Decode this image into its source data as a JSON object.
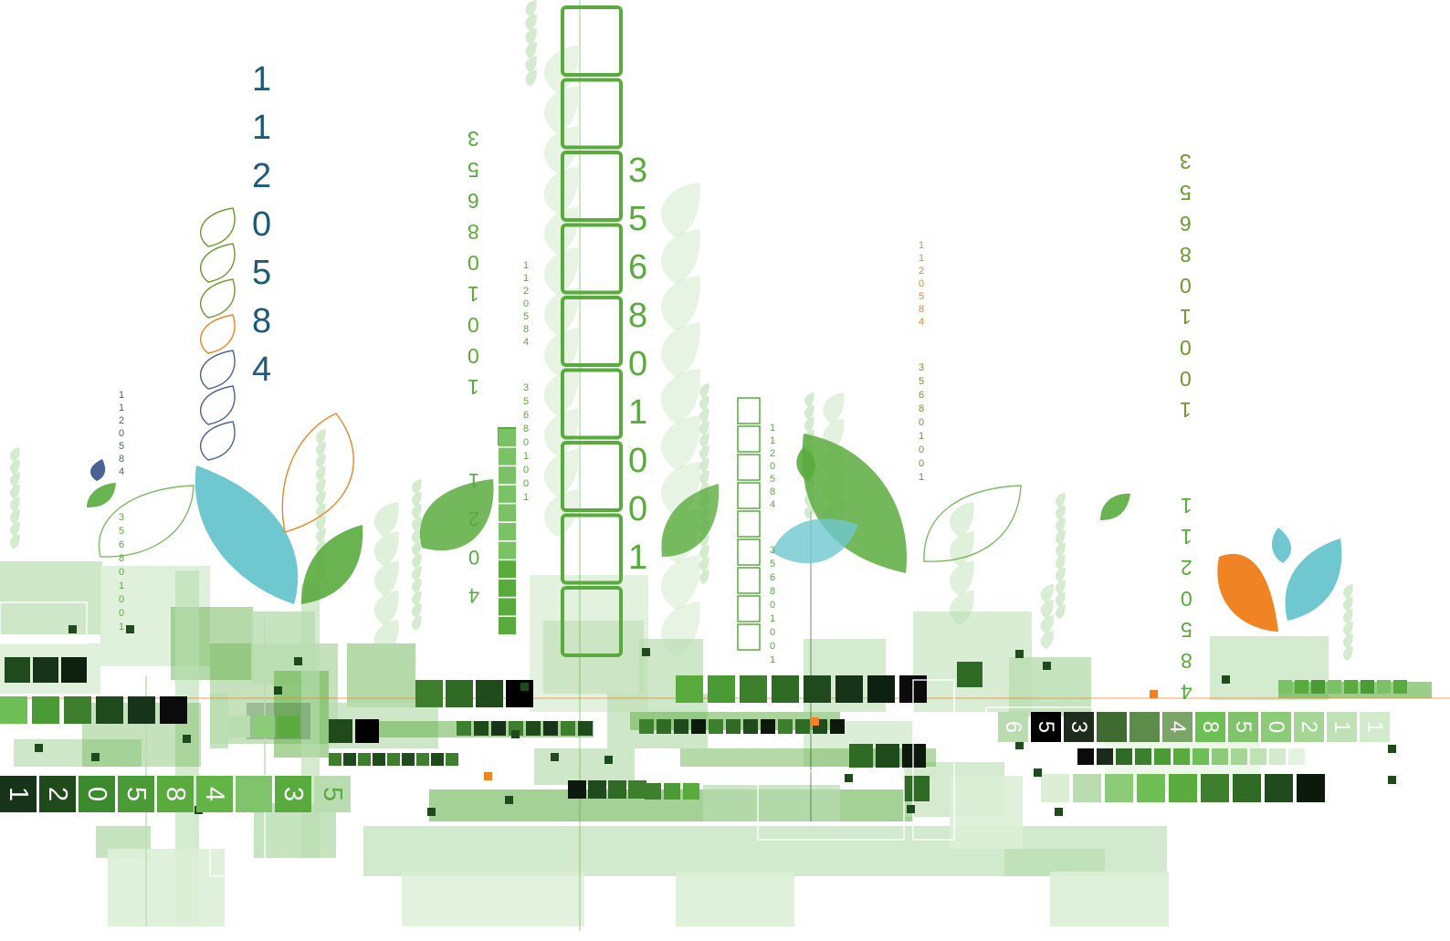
{
  "palette": {
    "dark_blue": "#1d5a7a",
    "green": "#5aab3e",
    "light_green": "#b9ddb0",
    "pale_green": "#dcefd6",
    "dark_green": "#1f4a1c",
    "olive": "#6b9a2f",
    "orange": "#f08424",
    "cyan": "#6fc8cf",
    "slate_blue": "#4a6196"
  },
  "number_columns": [
    {
      "id": "big-blue",
      "digits": [
        "1",
        "1",
        "2",
        "0",
        "5",
        "8",
        "4"
      ],
      "color": "#1d5a7a",
      "rotated": false
    },
    {
      "id": "big-green",
      "digits": [
        "3",
        "5",
        "6",
        "8",
        "0",
        "1",
        "0",
        "0",
        "1"
      ],
      "color": "#5aab3e",
      "rotated": false
    },
    {
      "id": "mirror-left",
      "digits": [
        "1",
        "0",
        "0",
        "1",
        "0",
        "8",
        "6",
        "5",
        "3"
      ],
      "color": "#5aab3e",
      "rotated": true
    },
    {
      "id": "mirror-right",
      "digits": [
        "1",
        "0",
        "0",
        "1",
        "0",
        "8",
        "6",
        "5",
        "3"
      ],
      "color": "#6b9a2f",
      "rotated": true
    },
    {
      "id": "mirror-right-low",
      "digits": [
        "4",
        "8",
        "5",
        "0",
        "2",
        "1",
        "1"
      ],
      "color": "#5aab3e",
      "rotated": true
    },
    {
      "id": "mirror-mid-low",
      "digits": [
        "4",
        "0",
        "2",
        "1"
      ],
      "color": "#5aab3e",
      "rotated": true
    },
    {
      "id": "tiny-blue",
      "digits": [
        "1",
        "1",
        "2",
        "0",
        "5",
        "8",
        "4"
      ],
      "color": "#4a6196",
      "rotated": false
    },
    {
      "id": "tiny-green-left",
      "digits": [
        "3",
        "5",
        "6",
        "8",
        "0",
        "1",
        "0",
        "0",
        "1"
      ],
      "color": "#5aab3e",
      "rotated": false
    },
    {
      "id": "tiny-green-a",
      "digits": [
        "1",
        "1",
        "2",
        "0",
        "5",
        "8",
        "4"
      ],
      "color": "#5aab3e",
      "rotated": false
    },
    {
      "id": "tiny-green-b",
      "digits": [
        "3",
        "5",
        "6",
        "8",
        "0",
        "1",
        "0",
        "0",
        "1"
      ],
      "color": "#5aab3e",
      "rotated": false
    },
    {
      "id": "tiny-green-c",
      "digits": [
        "1",
        "1",
        "2",
        "0",
        "5",
        "8",
        "4"
      ],
      "color": "#5aab3e",
      "rotated": false
    },
    {
      "id": "tiny-green-d",
      "digits": [
        "3",
        "5",
        "6",
        "8",
        "0",
        "1",
        "0",
        "0",
        "1"
      ],
      "color": "#5aab3e",
      "rotated": false
    },
    {
      "id": "tiny-orange",
      "digits": [
        "1",
        "1",
        "2",
        "0",
        "5",
        "8",
        "4"
      ],
      "color": "#f08424",
      "rotated": false
    },
    {
      "id": "tiny-olive",
      "digits": [
        "3",
        "5",
        "6",
        "8",
        "0",
        "1",
        "0",
        "0",
        "1"
      ],
      "color": "#6b9a2f",
      "rotated": false
    }
  ],
  "digit_strips": [
    {
      "id": "strip-left",
      "digits": [
        "1",
        "2",
        "0",
        "5",
        "8",
        "4",
        "",
        "3",
        "5"
      ]
    },
    {
      "id": "strip-right",
      "digits": [
        "6",
        "5",
        "3",
        "",
        "",
        "4",
        "8",
        "5",
        "0",
        "2",
        "1",
        "1"
      ]
    }
  ]
}
